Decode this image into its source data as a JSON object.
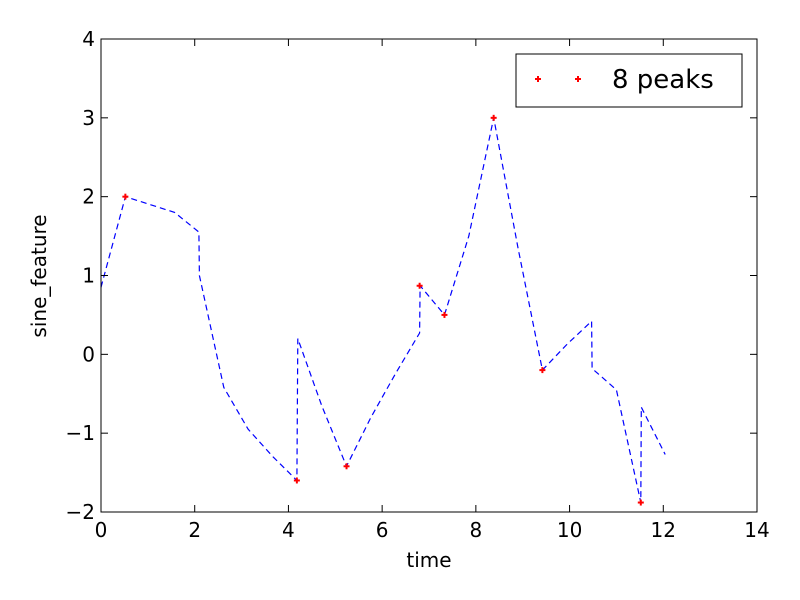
{
  "chart_data": {
    "type": "line",
    "xlabel": "time",
    "ylabel": "sine_feature",
    "xlim": [
      0,
      14
    ],
    "ylim": [
      -2,
      4
    ],
    "xticks": [
      0,
      2,
      4,
      6,
      8,
      10,
      12,
      14
    ],
    "yticks": [
      -2,
      -1,
      0,
      1,
      2,
      3,
      4
    ],
    "xtick_labels": [
      "0",
      "2",
      "4",
      "6",
      "8",
      "10",
      "12",
      "14"
    ],
    "ytick_labels": [
      "−2",
      "−1",
      "0",
      "1",
      "2",
      "3",
      "4"
    ],
    "grid": false,
    "legend_position": "top-right",
    "colors": {
      "signal": "#0000ff",
      "peaks": "#ff0000"
    },
    "series": [
      {
        "style": "dashed",
        "color": "#0000ff",
        "x": [
          0.0,
          0.52,
          1.05,
          1.57,
          2.09,
          2.1,
          2.62,
          3.14,
          3.67,
          4.18,
          4.2,
          4.71,
          5.24,
          5.76,
          6.28,
          6.8,
          6.81,
          7.33,
          7.85,
          8.38,
          8.9,
          9.42,
          9.95,
          10.47,
          10.48,
          11.0,
          11.52,
          11.53,
          12.04
        ],
        "y": [
          0.85,
          2.0,
          1.9,
          1.8,
          1.55,
          1.0,
          -0.42,
          -0.95,
          -1.3,
          -1.6,
          0.2,
          -0.65,
          -1.42,
          -0.8,
          -0.25,
          0.27,
          0.87,
          0.5,
          1.5,
          3.0,
          1.35,
          -0.2,
          0.13,
          0.42,
          -0.18,
          -0.45,
          -1.88,
          -0.67,
          -1.27
        ]
      },
      {
        "name": "8 peaks",
        "style": "markers",
        "color": "#ff0000",
        "x": [
          0.52,
          4.18,
          5.24,
          6.8,
          7.33,
          8.38,
          9.42,
          11.52
        ],
        "y": [
          2.0,
          -1.6,
          -1.42,
          0.87,
          0.5,
          3.0,
          -0.2,
          -1.88
        ]
      }
    ]
  }
}
